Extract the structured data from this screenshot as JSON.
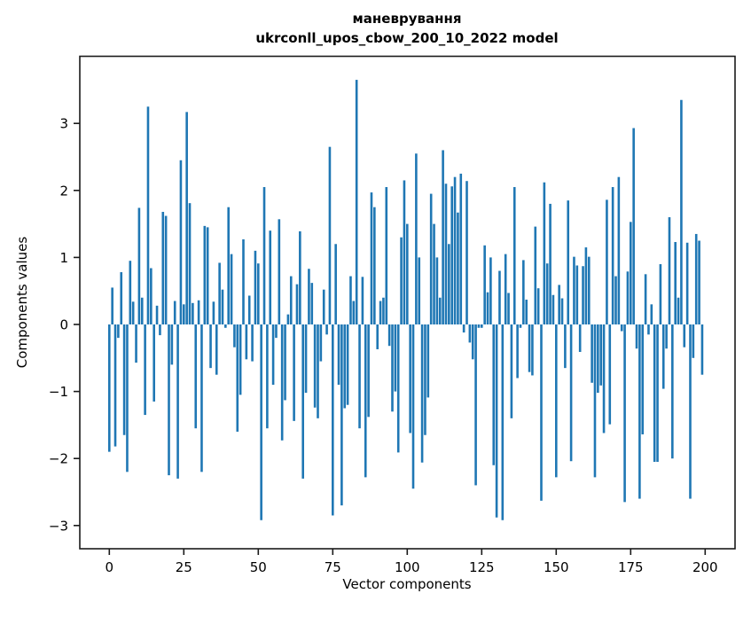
{
  "window": {
    "kind": "matplotlib-figure",
    "background": "#ffffff"
  },
  "chart_data": {
    "type": "bar",
    "title": "маневрування",
    "subtitle": "ukrconll_upos_cbow_200_10_2022 model",
    "xlabel": "Vector components",
    "ylabel": "Components values",
    "bar_color": "#1f77b4",
    "axis_color": "#1a1a1a",
    "grid": false,
    "legend": null,
    "xlim": [
      -10,
      210
    ],
    "ylim": [
      -3.35,
      4.0
    ],
    "x_ticks": [
      0,
      25,
      50,
      75,
      100,
      125,
      150,
      175,
      200
    ],
    "y_ticks": [
      3,
      2,
      1,
      0,
      -1,
      -2,
      -3
    ],
    "y_tick_labels": [
      "3",
      "2",
      "1",
      "0",
      "−1",
      "−2",
      "−3"
    ],
    "x_description": "component index 0..199",
    "values": [
      -1.9,
      0.55,
      -1.82,
      -0.2,
      0.78,
      -1.65,
      -2.2,
      0.95,
      0.34,
      -0.57,
      1.74,
      0.4,
      -1.35,
      3.25,
      0.84,
      -1.15,
      0.28,
      -0.16,
      1.68,
      1.62,
      -2.25,
      -0.6,
      0.35,
      -2.3,
      2.45,
      0.3,
      3.17,
      1.81,
      0.32,
      -1.55,
      0.36,
      -2.2,
      1.47,
      1.45,
      -0.65,
      0.34,
      -0.75,
      0.92,
      0.52,
      -0.05,
      1.75,
      1.05,
      -0.34,
      -1.6,
      -1.05,
      1.27,
      -0.52,
      0.43,
      -0.55,
      1.1,
      0.91,
      -2.92,
      2.05,
      -1.55,
      1.4,
      -0.9,
      -0.2,
      1.57,
      -1.73,
      -1.13,
      0.15,
      0.72,
      -1.44,
      0.6,
      1.39,
      -2.3,
      -1.02,
      0.83,
      0.62,
      -1.24,
      -1.4,
      -0.55,
      0.52,
      -0.15,
      2.65,
      -2.85,
      1.2,
      -0.9,
      -2.7,
      -1.25,
      -1.2,
      0.72,
      0.35,
      3.65,
      -1.55,
      0.71,
      -2.28,
      -1.38,
      1.97,
      1.75,
      -0.37,
      0.35,
      0.4,
      2.05,
      -0.32,
      -1.3,
      -1.0,
      -1.91,
      1.3,
      2.15,
      1.5,
      -1.62,
      -2.45,
      2.55,
      1.0,
      -2.06,
      -1.65,
      -1.09,
      1.95,
      1.5,
      1.0,
      0.4,
      2.6,
      2.1,
      1.2,
      2.06,
      2.2,
      1.67,
      2.25,
      -0.12,
      2.14,
      -0.27,
      -0.52,
      -2.4,
      -0.05,
      -0.05,
      1.18,
      0.48,
      1.0,
      -2.1,
      -2.88,
      0.8,
      -2.92,
      1.05,
      0.47,
      -1.4,
      2.05,
      -0.8,
      -0.05,
      0.96,
      0.37,
      -0.71,
      -0.76,
      1.46,
      0.54,
      -2.63,
      2.12,
      0.91,
      1.8,
      0.44,
      -2.28,
      0.59,
      0.39,
      -0.65,
      1.85,
      -2.04,
      1.01,
      0.88,
      -0.41,
      0.87,
      1.15,
      1.01,
      -0.87,
      -2.28,
      -1.02,
      -0.91,
      -1.62,
      1.86,
      -1.49,
      2.05,
      0.72,
      2.2,
      -0.1,
      -2.65,
      0.79,
      1.53,
      2.93,
      -0.36,
      -2.6,
      -1.64,
      0.75,
      -0.15,
      0.3,
      -2.05,
      -2.05,
      0.9,
      -0.96,
      -0.36,
      1.6,
      -2.0,
      1.23,
      0.4,
      3.35,
      -0.34,
      1.22,
      -2.6,
      -0.5,
      1.35,
      1.25,
      -0.75
    ]
  }
}
